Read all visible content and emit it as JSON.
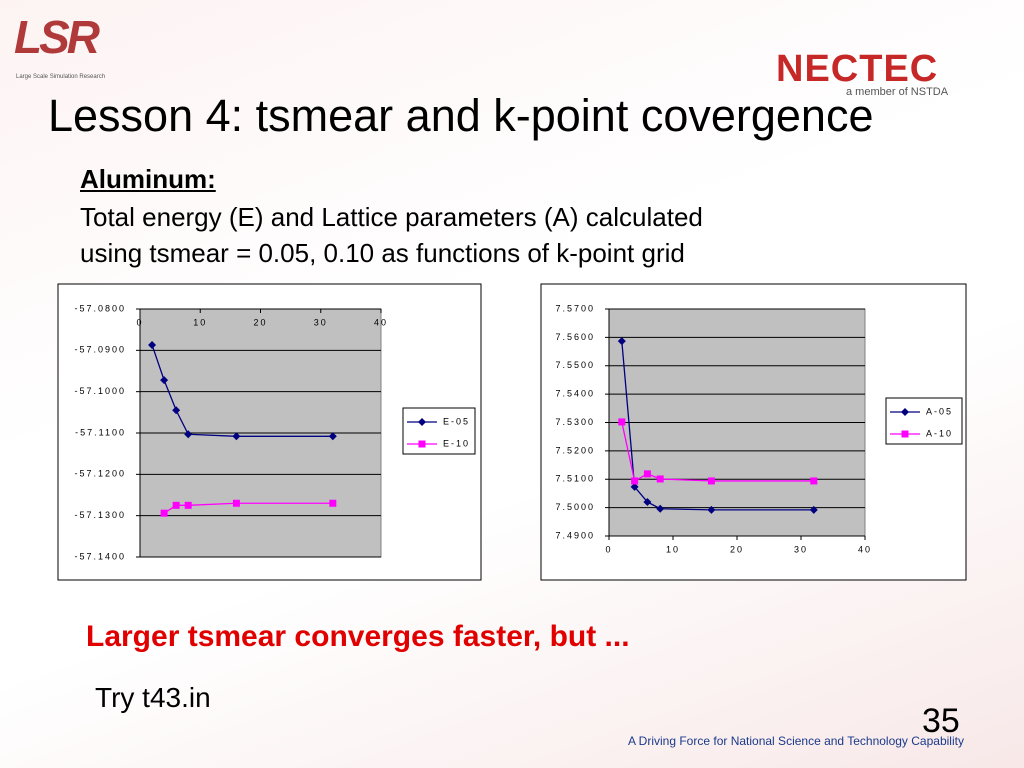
{
  "logo": {
    "name": "LSR",
    "caption": "Large Scale Simulation Research"
  },
  "brand": {
    "name": "NECTEC",
    "tagline": "a member of NSTDA"
  },
  "title": "Lesson 4: tsmear and k-point covergence",
  "subtitle": "Aluminum:",
  "description": [
    "Total energy (E) and Lattice parameters (A) calculated",
    "using tsmear = 0.05, 0.10 as functions of k-point grid"
  ],
  "conclusion": "Larger tsmear converges faster, but ...",
  "note": "Try t43.in",
  "page_number": "35",
  "footer": "A Driving Force for National Science and Technology Capability",
  "chart_data": [
    {
      "type": "line",
      "x_axis_position": "top",
      "legend": "right",
      "grid": true,
      "plot_background": "#c0c0c0",
      "x": [
        2,
        4,
        6,
        8,
        16,
        32
      ],
      "xlim": [
        0,
        40
      ],
      "xticks": [
        0,
        10,
        20,
        30,
        40
      ],
      "ylim": [
        -57.14,
        -57.08
      ],
      "yticks": [
        {
          "value": -57.08,
          "label": "-57.0800"
        },
        {
          "value": -57.09,
          "label": "-57.0900"
        },
        {
          "value": -57.1,
          "label": "-57.1000"
        },
        {
          "value": -57.11,
          "label": "-57.1100"
        },
        {
          "value": -57.12,
          "label": "-57.1200"
        },
        {
          "value": -57.13,
          "label": "-57.1300"
        },
        {
          "value": -57.14,
          "label": "-57.1400"
        }
      ],
      "series": [
        {
          "name": "E-05",
          "color": "#000080",
          "marker": "diamond",
          "values": [
            -57.0887,
            -57.0972,
            -57.1045,
            -57.1103,
            -57.1108,
            -57.1108
          ]
        },
        {
          "name": "E-10",
          "color": "#ff00ff",
          "marker": "square",
          "values": [
            null,
            -57.1294,
            -57.1275,
            -57.1275,
            -57.127,
            -57.127
          ]
        }
      ]
    },
    {
      "type": "line",
      "x_axis_position": "bottom",
      "legend": "right",
      "grid": true,
      "plot_background": "#c0c0c0",
      "x": [
        2,
        4,
        6,
        8,
        16,
        32
      ],
      "xlim": [
        0,
        40
      ],
      "xticks": [
        0,
        10,
        20,
        30,
        40
      ],
      "ylim": [
        7.49,
        7.57
      ],
      "yticks": [
        {
          "value": 7.57,
          "label": "7.5700"
        },
        {
          "value": 7.56,
          "label": "7.5600"
        },
        {
          "value": 7.55,
          "label": "7.5500"
        },
        {
          "value": 7.54,
          "label": "7.5400"
        },
        {
          "value": 7.53,
          "label": "7.5300"
        },
        {
          "value": 7.52,
          "label": "7.5200"
        },
        {
          "value": 7.51,
          "label": "7.5100"
        },
        {
          "value": 7.5,
          "label": "7.5000"
        },
        {
          "value": 7.49,
          "label": "7.4900"
        }
      ],
      "series": [
        {
          "name": "A-05",
          "color": "#000080",
          "marker": "diamond",
          "values": [
            7.5587,
            7.5073,
            7.502,
            7.4996,
            7.4992,
            7.4992
          ]
        },
        {
          "name": "A-10",
          "color": "#ff00ff",
          "marker": "square",
          "values": [
            7.5302,
            7.5094,
            7.5119,
            7.5101,
            7.5094,
            7.5094
          ]
        }
      ]
    }
  ]
}
